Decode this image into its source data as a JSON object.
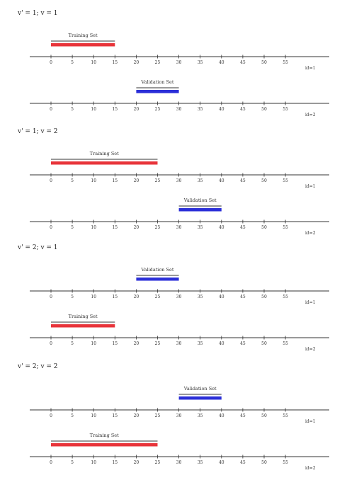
{
  "axis": {
    "ticks": [
      "0",
      "5",
      "10",
      "15",
      "20",
      "25",
      "30",
      "35",
      "40",
      "45",
      "50",
      "55"
    ],
    "tick_values": [
      0,
      5,
      10,
      15,
      20,
      25,
      30,
      35,
      40,
      45,
      50,
      55
    ]
  },
  "colors": {
    "training": "#e8343a",
    "validation": "#2b2fd8",
    "axis": "#333333"
  },
  "sections": [
    {
      "heading": "v' = 1; v = 1",
      "rows": [
        {
          "id_label": "id=1",
          "bar": {
            "label": "Training Set",
            "kind": "training",
            "start": 0,
            "end": 15
          }
        },
        {
          "id_label": "id=2",
          "bar": {
            "label": "Validation Set",
            "kind": "validation",
            "start": 20,
            "end": 30
          }
        }
      ]
    },
    {
      "heading": "v' = 1; v = 2",
      "rows": [
        {
          "id_label": "id=1",
          "bar": {
            "label": "Training Set",
            "kind": "training",
            "start": 0,
            "end": 25
          }
        },
        {
          "id_label": "id=2",
          "bar": {
            "label": "Validation Set",
            "kind": "validation",
            "start": 30,
            "end": 40
          }
        }
      ]
    },
    {
      "heading": "v' = 2; v = 1",
      "rows": [
        {
          "id_label": "id=1",
          "bar": {
            "label": "Validation Set",
            "kind": "validation",
            "start": 20,
            "end": 30
          }
        },
        {
          "id_label": "id=2",
          "bar": {
            "label": "Training Set",
            "kind": "training",
            "start": 0,
            "end": 15
          }
        }
      ]
    },
    {
      "heading": "v' = 2; v = 2",
      "rows": [
        {
          "id_label": "id=1",
          "bar": {
            "label": "Validation Set",
            "kind": "validation",
            "start": 30,
            "end": 40
          }
        },
        {
          "id_label": "id=2",
          "bar": {
            "label": "Training Set",
            "kind": "training",
            "start": 0,
            "end": 25
          }
        }
      ]
    }
  ]
}
